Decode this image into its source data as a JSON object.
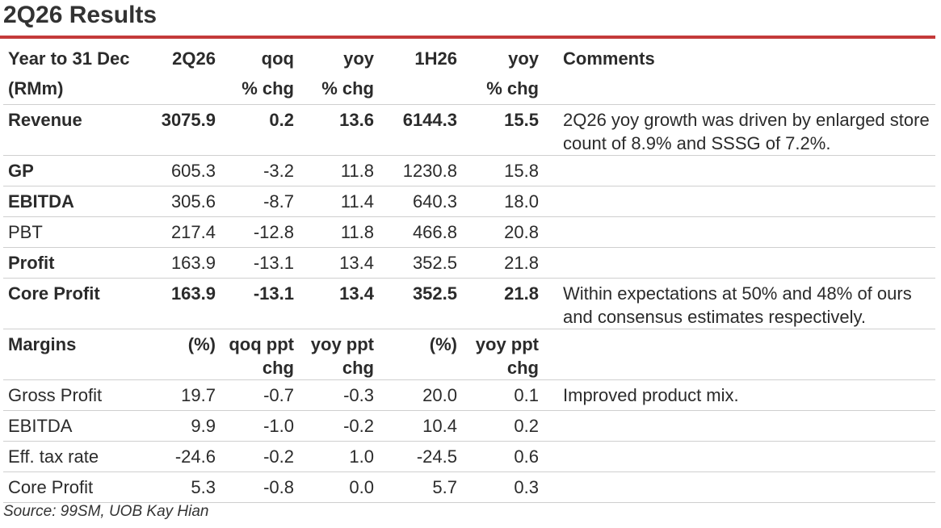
{
  "title": "2Q26 Results",
  "header": {
    "row1": [
      "Year to 31 Dec",
      "2Q26",
      "qoq",
      "yoy",
      "1H26",
      "yoy",
      "Comments"
    ],
    "row2": [
      "(RMm)",
      "",
      "% chg",
      "% chg",
      "",
      "% chg",
      ""
    ]
  },
  "rows": [
    {
      "label": "Revenue",
      "bold": true,
      "values": [
        "3075.9",
        "0.2",
        "13.6",
        "6144.3",
        "15.5"
      ],
      "comment": "2Q26 yoy growth was driven by enlarged store count of 8.9% and SSSG of 7.2%."
    },
    {
      "label": "GP",
      "label_bold": true,
      "values": [
        "605.3",
        "-3.2",
        "11.8",
        "1230.8",
        "15.8"
      ],
      "comment": ""
    },
    {
      "label": "EBITDA",
      "label_bold": true,
      "values": [
        "305.6",
        "-8.7",
        "11.4",
        "640.3",
        "18.0"
      ],
      "comment": ""
    },
    {
      "label": "PBT",
      "values": [
        "217.4",
        "-12.8",
        "11.8",
        "466.8",
        "20.8"
      ],
      "comment": ""
    },
    {
      "label": "Profit",
      "label_bold": true,
      "values": [
        "163.9",
        "-13.1",
        "13.4",
        "352.5",
        "21.8"
      ],
      "comment": ""
    },
    {
      "label": "Core Profit",
      "bold": true,
      "values": [
        "163.9",
        "-13.1",
        "13.4",
        "352.5",
        "21.8"
      ],
      "comment": "Within expectations at 50% and 48% of ours and consensus estimates respectively."
    }
  ],
  "margins_header": {
    "line1": [
      "Margins",
      "(%)",
      "qoq ppt",
      "yoy ppt",
      "(%)",
      "yoy ppt",
      ""
    ],
    "line2": [
      "",
      "",
      "chg",
      "chg",
      "",
      "chg",
      ""
    ]
  },
  "margins": [
    {
      "label": "Gross Profit",
      "values": [
        "19.7",
        "-0.7",
        "-0.3",
        "20.0",
        "0.1"
      ],
      "comment": "Improved product mix."
    },
    {
      "label": "EBITDA",
      "values": [
        "9.9",
        "-1.0",
        "-0.2",
        "10.4",
        "0.2"
      ],
      "comment": ""
    },
    {
      "label": "Eff. tax rate",
      "values": [
        "-24.6",
        "-0.2",
        "1.0",
        "-24.5",
        "0.6"
      ],
      "comment": ""
    },
    {
      "label": "Core Profit",
      "values": [
        "5.3",
        "-0.8",
        "0.0",
        "5.7",
        "0.3"
      ],
      "comment": ""
    }
  ],
  "source": "Source: 99SM, UOB Kay Hian",
  "colors": {
    "accent_rule": "#c43a3a",
    "text": "#2b2b2b",
    "row_separator": "#cfcfcf"
  }
}
